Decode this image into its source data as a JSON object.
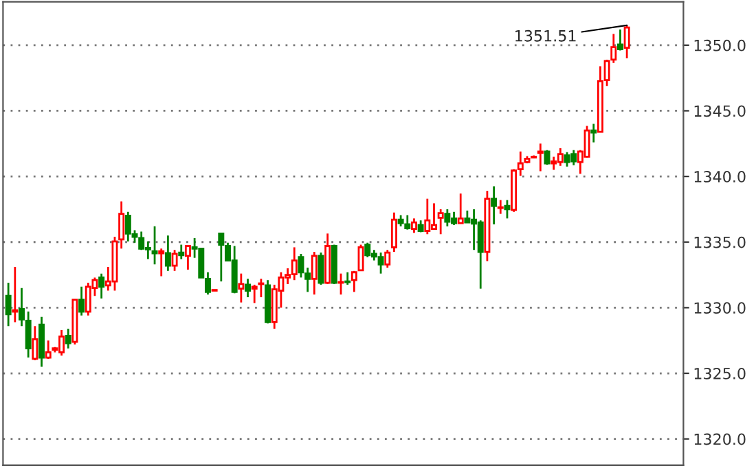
{
  "chart_data": {
    "type": "candlestick",
    "categories": [
      null,
      null,
      null,
      null,
      null,
      null,
      null,
      null,
      null,
      null,
      null,
      null,
      null,
      null,
      null,
      null,
      null,
      null,
      null,
      null,
      null,
      null,
      null,
      null,
      null,
      null,
      null,
      null,
      null,
      null,
      null,
      null,
      null,
      null,
      null,
      null,
      null,
      null,
      null,
      null,
      null,
      null,
      null,
      null,
      null,
      null,
      null,
      null,
      null,
      null,
      null,
      null,
      null,
      null,
      null,
      null,
      null,
      null,
      null,
      null,
      null,
      null,
      null,
      null,
      null,
      null,
      null,
      null,
      null,
      null,
      null,
      null,
      null,
      null,
      null,
      null,
      null,
      null,
      null,
      null,
      null,
      null,
      null,
      null,
      null,
      null,
      null,
      null,
      null,
      null,
      null,
      null,
      null,
      null
    ],
    "ohlc": [
      [
        1330.9,
        1331.9,
        1328.6,
        1329.5
      ],
      [
        1329.7,
        1333.1,
        1328.9,
        1329.8
      ],
      [
        1329.9,
        1331.5,
        1328.6,
        1329.1
      ],
      [
        1329.0,
        1329.7,
        1326.2,
        1326.9
      ],
      [
        1326.1,
        1328.6,
        1326.0,
        1327.6
      ],
      [
        1328.7,
        1329.3,
        1325.5,
        1326.2
      ],
      [
        1326.2,
        1327.5,
        1326.1,
        1326.6
      ],
      [
        1326.8,
        1327.0,
        1326.6,
        1326.9
      ],
      [
        1326.6,
        1328.3,
        1326.35,
        1327.8
      ],
      [
        1327.85,
        1328.4,
        1326.9,
        1327.3
      ],
      [
        1327.4,
        1330.6,
        1327.2,
        1330.6
      ],
      [
        1330.6,
        1331.6,
        1329.4,
        1329.7
      ],
      [
        1329.7,
        1331.9,
        1329.4,
        1331.6
      ],
      [
        1331.5,
        1332.3,
        1330.9,
        1332.1
      ],
      [
        1332.3,
        1332.6,
        1330.7,
        1331.6
      ],
      [
        1331.7,
        1333.1,
        1331.3,
        1332.0
      ],
      [
        1332.0,
        1335.4,
        1331.3,
        1335.05
      ],
      [
        1335.2,
        1338.1,
        1334.5,
        1337.15
      ],
      [
        1337.0,
        1337.3,
        1335.05,
        1335.65
      ],
      [
        1335.6,
        1335.9,
        1334.95,
        1335.4
      ],
      [
        1335.3,
        1335.8,
        1334.4,
        1334.5
      ],
      [
        1334.55,
        1335.05,
        1333.7,
        1334.45
      ],
      [
        1334.3,
        1336.2,
        1333.3,
        1334.15
      ],
      [
        1334.15,
        1334.5,
        1332.4,
        1334.3
      ],
      [
        1334.15,
        1335.5,
        1332.8,
        1333.2
      ],
      [
        1333.2,
        1334.4,
        1332.8,
        1334.1
      ],
      [
        1334.2,
        1334.8,
        1333.7,
        1334.0
      ],
      [
        1333.95,
        1334.7,
        1332.9,
        1334.7
      ],
      [
        1334.6,
        1335.3,
        1333.8,
        1334.5
      ],
      [
        1334.5,
        1334.5,
        1332.3,
        1332.3
      ],
      [
        1332.2,
        1332.7,
        1331.0,
        1331.2
      ],
      [
        1331.3,
        1331.35,
        1331.3,
        1331.35
      ],
      [
        1335.65,
        1335.7,
        1332.0,
        1334.8
      ],
      [
        1334.7,
        1334.95,
        1333.6,
        1333.6
      ],
      [
        1333.6,
        1334.7,
        1331.1,
        1331.2
      ],
      [
        1331.45,
        1332.6,
        1330.4,
        1331.8
      ],
      [
        1331.75,
        1332.2,
        1330.8,
        1331.3
      ],
      [
        1331.45,
        1331.75,
        1330.35,
        1331.6
      ],
      [
        1331.8,
        1332.2,
        1330.8,
        1331.85
      ],
      [
        1331.7,
        1332.1,
        1328.8,
        1328.9
      ],
      [
        1328.9,
        1331.75,
        1328.4,
        1331.4
      ],
      [
        1331.3,
        1332.7,
        1330.0,
        1332.3
      ],
      [
        1332.3,
        1333.0,
        1331.8,
        1332.5
      ],
      [
        1332.55,
        1334.6,
        1332.1,
        1333.6
      ],
      [
        1333.85,
        1334.1,
        1332.3,
        1332.7
      ],
      [
        1332.6,
        1333.05,
        1331.2,
        1332.2
      ],
      [
        1332.2,
        1334.25,
        1331.0,
        1333.95
      ],
      [
        1333.95,
        1334.2,
        1331.75,
        1331.9
      ],
      [
        1331.9,
        1335.65,
        1331.8,
        1334.7
      ],
      [
        1334.7,
        1334.8,
        1331.8,
        1331.9
      ],
      [
        1331.9,
        1332.6,
        1331.0,
        1331.95
      ],
      [
        1332.0,
        1332.7,
        1331.75,
        1331.95
      ],
      [
        1332.1,
        1332.8,
        1331.2,
        1332.7
      ],
      [
        1332.85,
        1334.8,
        1332.85,
        1334.6
      ],
      [
        1334.8,
        1334.95,
        1333.85,
        1334.0
      ],
      [
        1334.1,
        1334.4,
        1333.6,
        1333.9
      ],
      [
        1333.85,
        1334.2,
        1332.6,
        1333.3
      ],
      [
        1333.3,
        1334.4,
        1333.05,
        1334.2
      ],
      [
        1334.6,
        1337.25,
        1334.25,
        1336.7
      ],
      [
        1336.7,
        1337.05,
        1336.2,
        1336.45
      ],
      [
        1336.35,
        1337.05,
        1335.95,
        1336.05
      ],
      [
        1336.0,
        1336.8,
        1335.7,
        1336.5
      ],
      [
        1336.3,
        1336.65,
        1335.75,
        1335.85
      ],
      [
        1335.85,
        1338.3,
        1335.6,
        1336.65
      ],
      [
        1336.0,
        1337.95,
        1335.95,
        1336.3
      ],
      [
        1336.85,
        1337.5,
        1335.6,
        1337.2
      ],
      [
        1337.15,
        1337.5,
        1336.2,
        1336.55
      ],
      [
        1336.8,
        1337.3,
        1336.3,
        1336.45
      ],
      [
        1336.45,
        1338.7,
        1336.45,
        1336.8
      ],
      [
        1336.8,
        1337.4,
        1336.45,
        1336.5
      ],
      [
        1336.7,
        1337.5,
        1334.4,
        1336.4
      ],
      [
        1336.5,
        1336.65,
        1331.45,
        1334.25
      ],
      [
        1334.25,
        1338.9,
        1333.55,
        1338.3
      ],
      [
        1338.3,
        1339.25,
        1336.35,
        1337.75
      ],
      [
        1337.6,
        1338.2,
        1337.15,
        1337.65
      ],
      [
        1337.75,
        1338.2,
        1336.8,
        1337.5
      ],
      [
        1337.45,
        1340.55,
        1337.3,
        1340.45
      ],
      [
        1340.55,
        1341.9,
        1340.05,
        1341.0
      ],
      [
        1341.1,
        1341.55,
        1341.0,
        1341.35
      ],
      [
        1341.45,
        1341.6,
        1341.4,
        1341.5
      ],
      [
        1341.8,
        1342.5,
        1340.4,
        1341.9
      ],
      [
        1341.9,
        1342.0,
        1340.9,
        1341.0
      ],
      [
        1341.0,
        1341.5,
        1340.5,
        1341.15
      ],
      [
        1341.1,
        1342.15,
        1340.8,
        1341.7
      ],
      [
        1341.6,
        1341.85,
        1340.75,
        1341.1
      ],
      [
        1341.7,
        1342.0,
        1340.85,
        1341.15
      ],
      [
        1341.1,
        1342.0,
        1340.2,
        1341.9
      ],
      [
        1341.5,
        1343.85,
        1341.45,
        1343.5
      ],
      [
        1343.5,
        1344.0,
        1342.6,
        1343.35
      ],
      [
        1343.4,
        1348.4,
        1343.4,
        1347.25
      ],
      [
        1347.35,
        1348.9,
        1346.9,
        1348.8
      ],
      [
        1348.9,
        1350.85,
        1348.65,
        1349.85
      ],
      [
        1350.05,
        1351.2,
        1349.6,
        1349.7
      ],
      [
        1349.8,
        1351.51,
        1349.0,
        1351.35
      ]
    ],
    "colors": [
      "#008000",
      "#ff0000",
      "#008000",
      "#008000",
      "#ff0000",
      "#008000",
      "#ff0000",
      "#ff0000",
      "#ff0000",
      "#008000",
      "#ff0000",
      "#008000",
      "#ff0000",
      "#ff0000",
      "#008000",
      "#ff0000",
      "#ff0000",
      "#ff0000",
      "#008000",
      "#008000",
      "#008000",
      "#008000",
      "#008000",
      "#ff0000",
      "#008000",
      "#ff0000",
      "#008000",
      "#ff0000",
      "#008000",
      "#008000",
      "#008000",
      "#ff0000",
      "#008000",
      "#008000",
      "#008000",
      "#ff0000",
      "#008000",
      "#ff0000",
      "#ff0000",
      "#008000",
      "#ff0000",
      "#ff0000",
      "#ff0000",
      "#ff0000",
      "#008000",
      "#008000",
      "#ff0000",
      "#008000",
      "#ff0000",
      "#008000",
      "#ff0000",
      "#008000",
      "#ff0000",
      "#ff0000",
      "#008000",
      "#008000",
      "#008000",
      "#ff0000",
      "#ff0000",
      "#008000",
      "#008000",
      "#ff0000",
      "#008000",
      "#ff0000",
      "#ff0000",
      "#ff0000",
      "#008000",
      "#008000",
      "#ff0000",
      "#008000",
      "#008000",
      "#008000",
      "#ff0000",
      "#008000",
      "#ff0000",
      "#008000",
      "#ff0000",
      "#ff0000",
      "#ff0000",
      "#ff0000",
      "#ff0000",
      "#008000",
      "#ff0000",
      "#ff0000",
      "#008000",
      "#008000",
      "#ff0000",
      "#ff0000",
      "#008000",
      "#ff0000",
      "#ff0000",
      "#ff0000",
      "#008000",
      "#ff0000"
    ],
    "ylim": [
      1318.0,
      1353.3
    ],
    "yticks": [
      {
        "value": 1320,
        "label": "1320.0"
      },
      {
        "value": 1325,
        "label": "1325.0"
      },
      {
        "value": 1330,
        "label": "1330.0"
      },
      {
        "value": 1335,
        "label": "1335.0"
      },
      {
        "value": 1340,
        "label": "1340.0"
      },
      {
        "value": 1345,
        "label": "1345.0"
      },
      {
        "value": 1350,
        "label": "1350.0"
      }
    ],
    "grid": "y",
    "annotations": [
      "1351.51"
    ]
  }
}
